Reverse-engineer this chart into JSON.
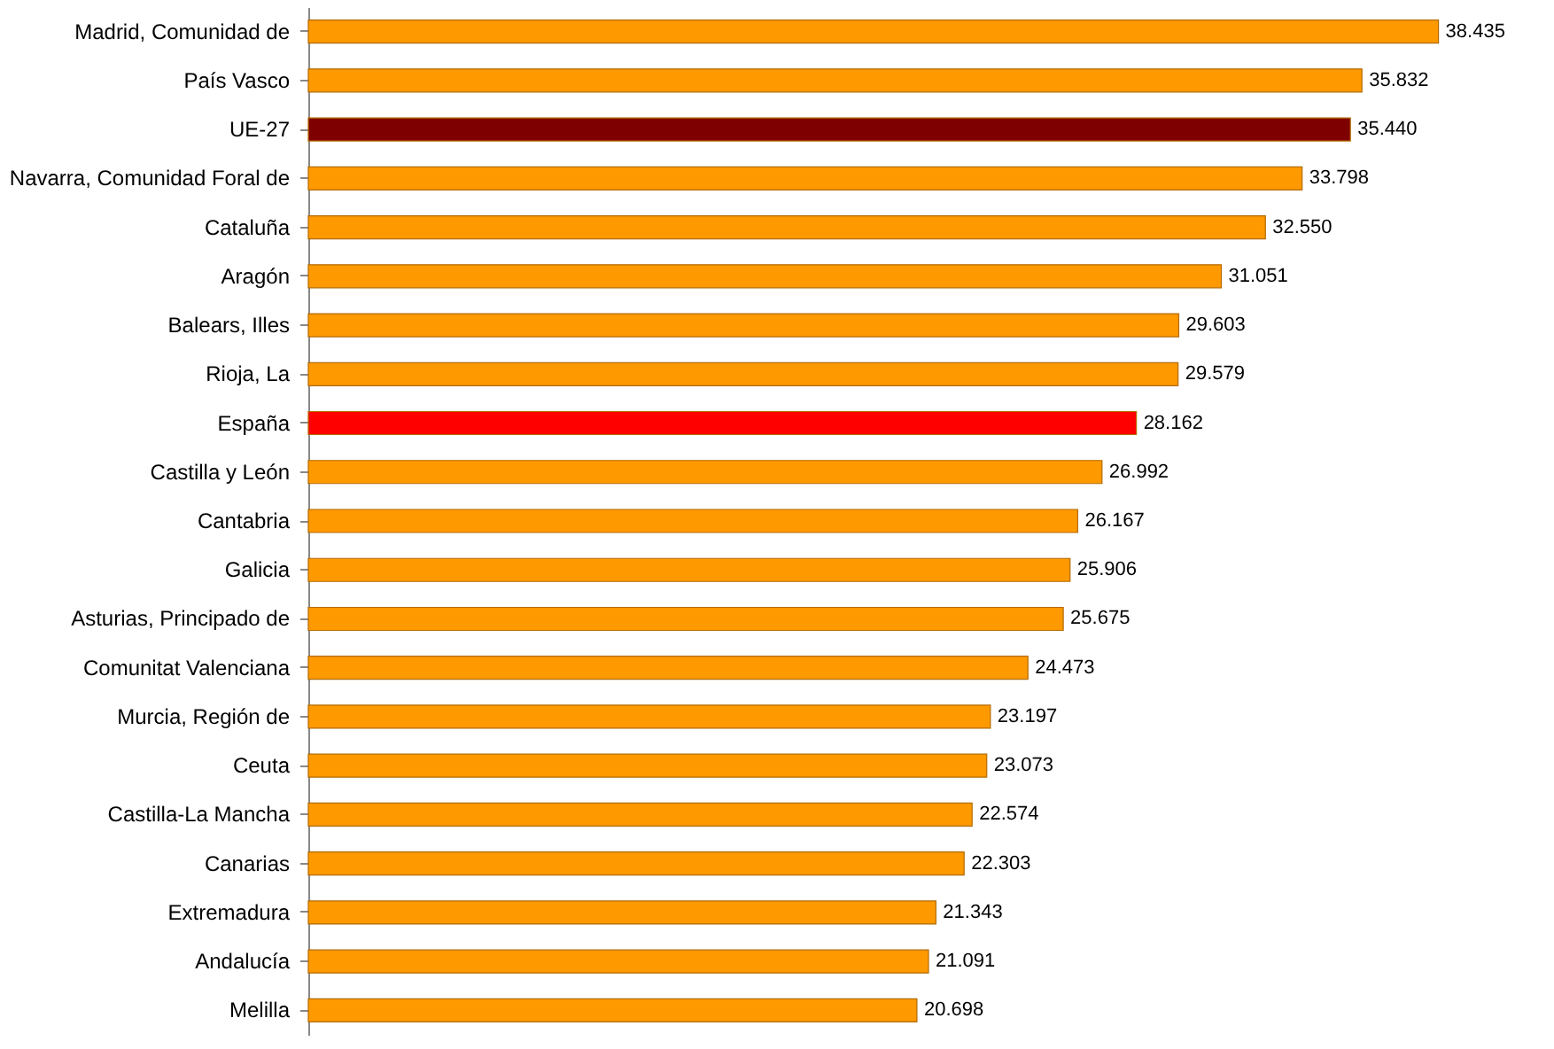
{
  "chart_data": {
    "type": "bar",
    "orientation": "horizontal",
    "categories": [
      "Madrid, Comunidad de",
      "País Vasco",
      "UE-27",
      "Navarra, Comunidad Foral de",
      "Cataluña",
      "Aragón",
      "Balears, Illes",
      "Rioja, La",
      "España",
      "Castilla y León",
      "Cantabria",
      "Galicia",
      "Asturias, Principado de",
      "Comunitat Valenciana",
      "Murcia, Región de",
      "Ceuta ",
      "Castilla-La Mancha",
      "Canarias",
      "Extremadura",
      "Andalucía",
      "Melilla"
    ],
    "values": [
      38435,
      35832,
      35440,
      33798,
      32550,
      31051,
      29603,
      29579,
      28162,
      26992,
      26167,
      25906,
      25675,
      24473,
      23197,
      23073,
      22574,
      22303,
      21343,
      21091,
      20698
    ],
    "value_labels": [
      "38.435",
      "35.832",
      "35.440",
      "33.798",
      "32.550",
      "31.051",
      "29.603",
      "29.579",
      "28.162",
      "26.992",
      "26.167",
      "25.906",
      "25.675",
      "24.473",
      "23.197",
      "23.073",
      "22.574",
      "22.303",
      "21.343",
      "21.091",
      "20.698"
    ],
    "colors": [
      "#ff9900",
      "#ff9900",
      "#7f0000",
      "#ff9900",
      "#ff9900",
      "#ff9900",
      "#ff9900",
      "#ff9900",
      "#ff0000",
      "#ff9900",
      "#ff9900",
      "#ff9900",
      "#ff9900",
      "#ff9900",
      "#ff9900",
      "#ff9900",
      "#ff9900",
      "#ff9900",
      "#ff9900",
      "#ff9900",
      "#ff9900"
    ]
  }
}
